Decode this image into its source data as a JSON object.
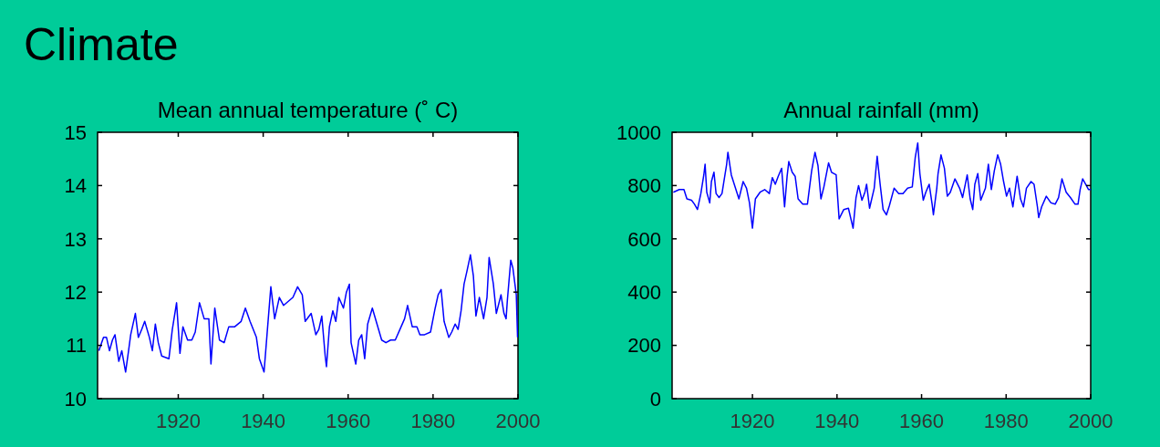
{
  "chart_data": [
    {
      "type": "other",
      "title": "Climate"
    },
    {
      "type": "line",
      "title": "Mean annual temperature (˚ C)",
      "xlim": [
        1901,
        2000
      ],
      "xticks": [
        1920,
        1940,
        1960,
        1980,
        2000
      ],
      "ylim": [
        10,
        15
      ],
      "yticks": [
        10,
        11,
        12,
        13,
        14,
        15
      ],
      "grid": false,
      "series": [
        {
          "color": "#0000ff",
          "x": [
            1901.3,
            1902.4,
            1903.1,
            1903.8,
            1904.5,
            1905.1,
            1906,
            1906.7,
            1907.6,
            1908.3,
            1908.8,
            1909.9,
            1910.6,
            1911.4,
            1912.1,
            1913.2,
            1913.9,
            1914.6,
            1915.3,
            1916.1,
            1917.8,
            1918.6,
            1919.6,
            1920.4,
            1921.1,
            1922.2,
            1923.2,
            1924,
            1925,
            1926.1,
            1927.2,
            1927.7,
            1928.6,
            1929.7,
            1930.8,
            1931.9,
            1933.3,
            1934.8,
            1935.8,
            1936.9,
            1938.4,
            1939.1,
            1940.2,
            1940.9,
            1941.8,
            1942.7,
            1943.8,
            1944.8,
            1947,
            1948.1,
            1949.2,
            1949.9,
            1951.3,
            1952.4,
            1953.1,
            1953.8,
            1954.6,
            1954.9,
            1955.6,
            1956.4,
            1957.1,
            1957.8,
            1958.9,
            1959.6,
            1960.3,
            1960.7,
            1961.8,
            1962.5,
            1963.2,
            1963.9,
            1964.6,
            1965.7,
            1966.8,
            1967.9,
            1968.9,
            1970,
            1971.1,
            1972.2,
            1973.3,
            1974,
            1975.1,
            1976.2,
            1976.9,
            1978,
            1979.4,
            1980.5,
            1981.2,
            1981.9,
            1982.6,
            1983.7,
            1984.4,
            1985.2,
            1985.9,
            1986.6,
            1987.3,
            1988,
            1988.8,
            1989.5,
            1990.1,
            1990.9,
            1991.9,
            1992.7,
            1993.2,
            1994.2,
            1994.9,
            1996,
            1996.7,
            1997.2,
            1997.5,
            1998.3,
            1998.8,
            1999.6,
            1999.9
          ],
          "values": [
            10.9,
            11.15,
            11.15,
            10.9,
            11.1,
            11.2,
            10.7,
            10.9,
            10.5,
            10.9,
            11.2,
            11.6,
            11.15,
            11.3,
            11.45,
            11.15,
            10.9,
            11.4,
            11.05,
            10.8,
            10.75,
            11.3,
            11.8,
            10.85,
            11.35,
            11.1,
            11.1,
            11.25,
            11.8,
            11.5,
            11.5,
            10.65,
            11.7,
            11.1,
            11.05,
            11.35,
            11.35,
            11.45,
            11.7,
            11.45,
            11.15,
            10.75,
            10.5,
            11.2,
            12.1,
            11.5,
            11.9,
            11.75,
            11.9,
            12.1,
            11.95,
            11.45,
            11.6,
            11.2,
            11.3,
            11.55,
            10.8,
            10.6,
            11.35,
            11.65,
            11.45,
            11.9,
            11.7,
            12,
            12.15,
            11.05,
            10.65,
            11.1,
            11.2,
            10.75,
            11.4,
            11.7,
            11.4,
            11.1,
            11.05,
            11.1,
            11.1,
            11.3,
            11.5,
            11.75,
            11.35,
            11.35,
            11.2,
            11.2,
            11.25,
            11.7,
            11.95,
            12.05,
            11.45,
            11.15,
            11.25,
            11.4,
            11.3,
            11.65,
            12.15,
            12.4,
            12.7,
            12.3,
            11.55,
            11.9,
            11.5,
            11.9,
            12.65,
            12.15,
            11.6,
            11.95,
            11.6,
            11.5,
            11.85,
            12.6,
            12.45,
            11.95,
            11.15
          ]
        }
      ]
    },
    {
      "type": "line",
      "title": "Annual rainfall (mm)",
      "xlim": [
        1901,
        2000
      ],
      "xticks": [
        1920,
        1940,
        1960,
        1980,
        2000
      ],
      "ylim": [
        0,
        1000
      ],
      "yticks": [
        0,
        200,
        400,
        600,
        800,
        1000
      ],
      "grid": false,
      "series": [
        {
          "color": "#0000ff",
          "x": [
            1901.3,
            1902.7,
            1903.8,
            1904.5,
            1905.6,
            1906.3,
            1907,
            1907.8,
            1908.5,
            1908.8,
            1909.2,
            1909.9,
            1910.3,
            1910.9,
            1911.4,
            1912.1,
            1912.8,
            1913.2,
            1913.9,
            1914.2,
            1915,
            1915.7,
            1916.8,
            1917.8,
            1918.6,
            1919.3,
            1920,
            1920.7,
            1921.8,
            1922.9,
            1924,
            1924.7,
            1925.4,
            1926.1,
            1926.9,
            1927.6,
            1928.2,
            1928.6,
            1929.4,
            1930.1,
            1930.8,
            1931.9,
            1933,
            1934,
            1934.8,
            1935.5,
            1936.2,
            1936.9,
            1938,
            1938.7,
            1939.8,
            1940.5,
            1941.6,
            1942.7,
            1943.8,
            1944.5,
            1945.1,
            1945.9,
            1946.6,
            1947,
            1947.7,
            1948.8,
            1949.5,
            1950.2,
            1950.9,
            1951.7,
            1952.4,
            1953.5,
            1954.6,
            1955.6,
            1956.7,
            1957.8,
            1958.5,
            1959.1,
            1959.6,
            1960.4,
            1961,
            1961.8,
            1962.5,
            1962.8,
            1963.6,
            1963.9,
            1964.6,
            1965.4,
            1966.1,
            1966.8,
            1967.9,
            1969,
            1969.7,
            1970.8,
            1971.5,
            1972.1,
            1972.6,
            1973.3,
            1974,
            1975.1,
            1975.8,
            1976.5,
            1977.2,
            1978,
            1978.7,
            1979.4,
            1980.1,
            1980.8,
            1981.6,
            1982.6,
            1983.4,
            1984.1,
            1984.8,
            1985.9,
            1986.6,
            1987.4,
            1987.7,
            1988.4,
            1989.5,
            1990.6,
            1991.6,
            1992.4,
            1993.2,
            1994.2,
            1995.2,
            1996.3,
            1997,
            1997.5,
            1998.1,
            1998.8,
            1999.5,
            2000
          ],
          "values": [
            775,
            785,
            785,
            750,
            745,
            730,
            710,
            770,
            840,
            880,
            775,
            735,
            815,
            850,
            770,
            755,
            770,
            810,
            880,
            925,
            840,
            805,
            750,
            815,
            790,
            735,
            640,
            750,
            775,
            785,
            770,
            830,
            805,
            835,
            865,
            720,
            835,
            890,
            850,
            835,
            750,
            730,
            730,
            855,
            925,
            875,
            750,
            795,
            885,
            850,
            840,
            675,
            710,
            715,
            640,
            755,
            800,
            745,
            775,
            805,
            715,
            790,
            910,
            805,
            710,
            690,
            725,
            790,
            770,
            770,
            790,
            795,
            905,
            960,
            845,
            745,
            775,
            805,
            730,
            690,
            790,
            845,
            915,
            865,
            760,
            775,
            825,
            790,
            755,
            840,
            750,
            710,
            805,
            845,
            745,
            790,
            880,
            785,
            855,
            915,
            880,
            815,
            760,
            790,
            720,
            835,
            750,
            720,
            790,
            815,
            805,
            720,
            680,
            720,
            760,
            735,
            730,
            755,
            825,
            775,
            755,
            730,
            730,
            785,
            825,
            805,
            785,
            785
          ]
        }
      ]
    }
  ]
}
